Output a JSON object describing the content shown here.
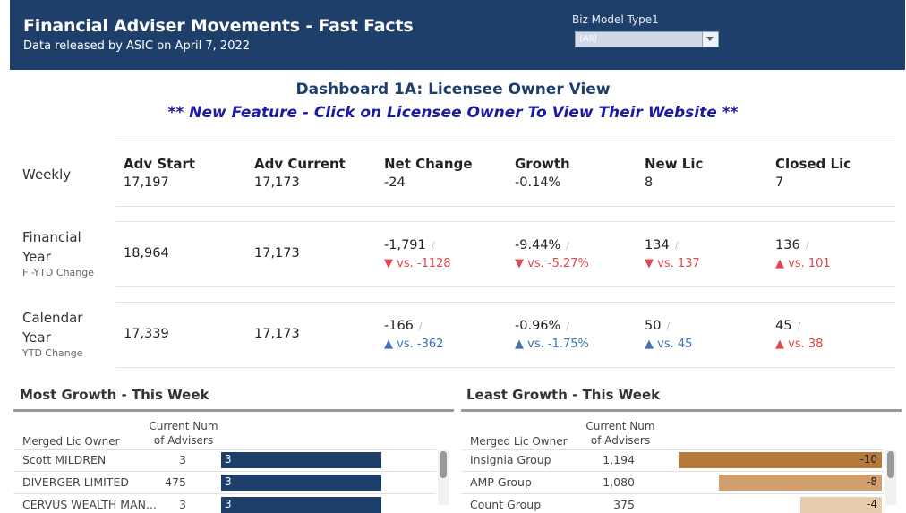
{
  "header": {
    "title": "Financial Adviser Movements - Fast Facts",
    "subtitle": "Data released by ASIC on April 7, 2022",
    "filter_label": "Biz Model Type1",
    "filter_value": "(All)"
  },
  "dashboard": {
    "title": "Dashboard 1A: Licensee Owner View",
    "feature": "** New Feature - Click on Licensee Owner To View Their Website **"
  },
  "kpi": {
    "headers": [
      "Adv Start",
      "Adv Current",
      "Net Change",
      "Growth",
      "New Lic",
      "Closed Lic"
    ],
    "weekly": {
      "label": "Weekly",
      "values": [
        "17,197",
        "17,173",
        "-24",
        "-0.14%",
        "8",
        "7"
      ]
    },
    "fy": {
      "label_line1": "Financial",
      "label_line2": "Year",
      "sub": "F -YTD Change",
      "values": [
        "18,964",
        "17,173",
        "-1,791",
        "-9.44%",
        "134",
        "136"
      ],
      "compare": [
        "vs. -1128",
        "vs. -5.27%",
        "vs. 137",
        "vs. 101"
      ],
      "arrows": [
        "down",
        "down",
        "down",
        "up-red"
      ]
    },
    "cy": {
      "label_line1": "Calendar",
      "label_line2": "Year",
      "sub": "YTD Change",
      "values": [
        "17,339",
        "17,173",
        "-166",
        "-0.96%",
        "50",
        "45"
      ],
      "compare": [
        "vs. -362",
        "vs. -1.75%",
        "vs. 45",
        "vs. 38"
      ],
      "arrows": [
        "up-blue",
        "up-blue",
        "up-blue",
        "up-red"
      ]
    },
    "slash": "/"
  },
  "most_growth": {
    "title": "Most Growth - This Week",
    "col_owner": "Merged Lic Owner",
    "col_current_1": "Current Num",
    "col_current_2": "of Advisers",
    "rows": [
      {
        "name": "Scott  MILDREN",
        "current": "3",
        "change": 3
      },
      {
        "name": "DIVERGER LIMITED",
        "current": "475",
        "change": 3
      },
      {
        "name": "CERVUS WEALTH MAN...",
        "current": "3",
        "change": 3
      }
    ],
    "bar_color": "#1f3f6b"
  },
  "least_growth": {
    "title": "Least Growth - This Week",
    "col_owner": "Merged Lic Owner",
    "col_current_1": "Current Num",
    "col_current_2": "of Advisers",
    "rows": [
      {
        "name": "Insignia Group",
        "current": "1,194",
        "change": -10
      },
      {
        "name": "AMP Group",
        "current": "1,080",
        "change": -8
      },
      {
        "name": "Count Group",
        "current": "375",
        "change": -4
      }
    ],
    "bar_colors": [
      "#b57a3c",
      "#d2a06e",
      "#e8ccae"
    ]
  },
  "colors": {
    "header_bg": "#1f3f6b",
    "feature_text": "#1a1aa3",
    "down": "#e0464a",
    "up_blue": "#3f72b4"
  }
}
